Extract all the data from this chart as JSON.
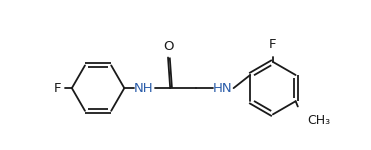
{
  "bg_color": "#ffffff",
  "line_color": "#1a1a1a",
  "lw": 1.3,
  "dbo": 0.05,
  "figsize": [
    3.71,
    1.5
  ],
  "dpi": 100,
  "xlim": [
    -0.5,
    7.5
  ],
  "ylim": [
    -1.2,
    2.2
  ],
  "NH_color": "#2b5daa",
  "HN_color": "#2b5daa"
}
